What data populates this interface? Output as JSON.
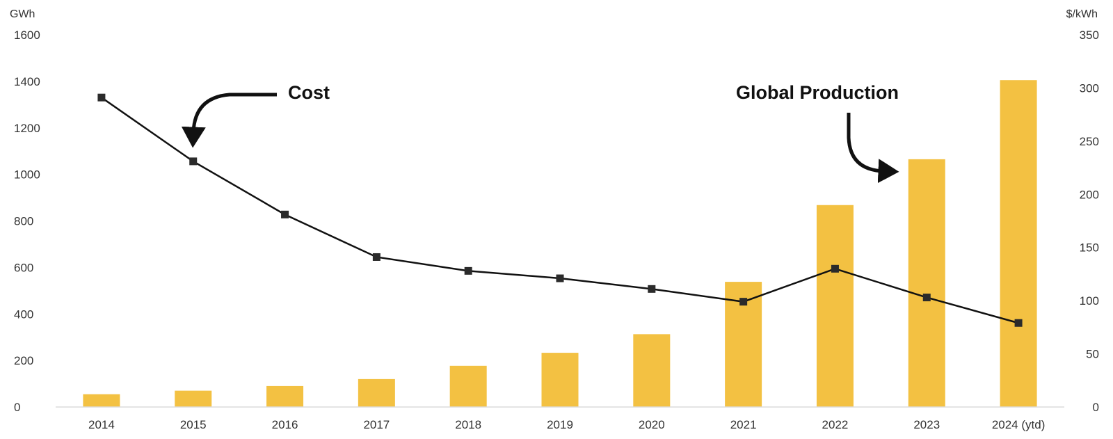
{
  "chart_data": {
    "type": "bar+line",
    "categories": [
      "2014",
      "2015",
      "2016",
      "2017",
      "2018",
      "2019",
      "2020",
      "2021",
      "2022",
      "2023",
      "2024 (ytd)"
    ],
    "series": [
      {
        "name": "Global Production",
        "type": "bar",
        "axis": "left",
        "color": "#F3C142",
        "values": [
          55,
          70,
          90,
          120,
          177,
          233,
          313,
          538,
          868,
          1065,
          1405
        ]
      },
      {
        "name": "Cost",
        "type": "line",
        "axis": "right",
        "color": "#111111",
        "values": [
          291,
          231,
          181,
          141,
          128,
          121,
          111,
          99,
          130,
          103,
          79
        ]
      }
    ],
    "left_axis": {
      "unit": "GWh",
      "range": [
        0,
        1600
      ],
      "ticks": [
        "0",
        "200",
        "400",
        "600",
        "800",
        "1000",
        "1200",
        "1400",
        "1600"
      ]
    },
    "right_axis": {
      "unit": "$/kWh",
      "range": [
        0,
        350
      ],
      "ticks": [
        "0",
        "50",
        "100",
        "150",
        "200",
        "250",
        "300",
        "350"
      ]
    },
    "annotations": {
      "cost": "Cost",
      "production": "Global Production"
    },
    "grid": false,
    "legend": "none"
  }
}
